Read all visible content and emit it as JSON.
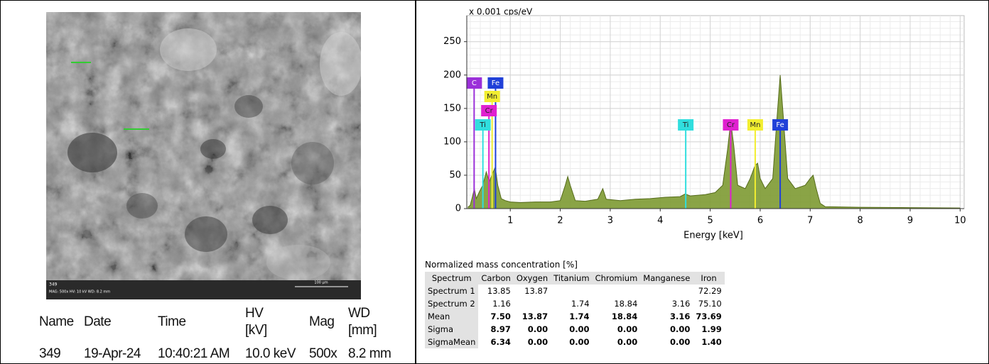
{
  "sem_image": {
    "id_label": "349",
    "info": "MAG: 500x   HV: 10 kV   WD: 8.2 mm",
    "scale_bar": "100 µm"
  },
  "acquisition_table": {
    "headers": [
      "Name",
      "Date",
      "Time",
      "HV [kV]",
      "Mag",
      "WD [mm]"
    ],
    "rows": [
      [
        "349",
        "19-Apr-24",
        "10:40:21 AM",
        "10.0 keV",
        "500x",
        "8.2 mm"
      ]
    ]
  },
  "chart_data": {
    "type": "area",
    "ylabel": "x 0.001 cps/eV",
    "xlabel": "Energy [keV]",
    "xlim": [
      0.13,
      10.08
    ],
    "ylim": [
      0,
      289
    ],
    "xticks": [
      1,
      2,
      3,
      4,
      5,
      6,
      7,
      8,
      9,
      10
    ],
    "yticks": [
      0,
      50,
      100,
      150,
      200,
      250
    ],
    "grid": true,
    "x": [
      0.15,
      0.2,
      0.25,
      0.28,
      0.32,
      0.38,
      0.45,
      0.52,
      0.58,
      0.63,
      0.7,
      0.75,
      0.82,
      0.9,
      1.0,
      1.2,
      1.5,
      1.8,
      2.0,
      2.1,
      2.15,
      2.2,
      2.3,
      2.5,
      2.75,
      2.85,
      2.92,
      3.2,
      3.5,
      3.8,
      4.1,
      4.4,
      4.5,
      4.6,
      4.9,
      5.1,
      5.25,
      5.35,
      5.41,
      5.47,
      5.55,
      5.7,
      5.8,
      5.9,
      5.95,
      6.0,
      6.1,
      6.25,
      6.33,
      6.4,
      6.46,
      6.55,
      6.7,
      6.9,
      7.0,
      7.06,
      7.12,
      7.2,
      7.3,
      8.0,
      9.0,
      10.0
    ],
    "series": [
      {
        "color": "#7d9a32",
        "values": [
          2,
          5,
          20,
          30,
          15,
          25,
          35,
          55,
          40,
          50,
          62,
          35,
          15,
          12,
          10,
          9,
          10,
          10,
          12,
          35,
          48,
          35,
          12,
          11,
          14,
          30,
          14,
          12,
          14,
          15,
          17,
          18,
          22,
          19,
          21,
          24,
          35,
          90,
          130,
          95,
          35,
          30,
          45,
          65,
          68,
          45,
          30,
          45,
          130,
          200,
          140,
          45,
          30,
          35,
          45,
          50,
          30,
          8,
          3,
          2,
          1.5,
          1
        ]
      }
    ],
    "element_markers": [
      {
        "label": "C",
        "energy": 0.277,
        "color": "#9b30d9"
      },
      {
        "label": "Fe",
        "energy": 0.705,
        "color": "#2040d8"
      },
      {
        "label": "Mn",
        "energy": 0.637,
        "color": "#f2ee30"
      },
      {
        "label": "Cr",
        "energy": 0.573,
        "color": "#e020d0"
      },
      {
        "label": "Ti",
        "energy": 0.452,
        "color": "#30dede"
      },
      {
        "label": "Ti",
        "energy": 4.51,
        "color": "#30dede"
      },
      {
        "label": "Cr",
        "energy": 5.41,
        "color": "#e020d0"
      },
      {
        "label": "Mn",
        "energy": 5.9,
        "color": "#f2ee30"
      },
      {
        "label": "Fe",
        "energy": 6.4,
        "color": "#2040d8"
      }
    ]
  },
  "concentration_table": {
    "title": "Normalized mass concentration [%]",
    "headers": [
      "Spectrum",
      "Carbon",
      "Oxygen",
      "Titanium",
      "Chromium",
      "Manganese",
      "Iron"
    ],
    "rows": [
      [
        "Spectrum 1",
        "13.85",
        "13.87",
        null,
        null,
        null,
        "72.29"
      ],
      [
        "Spectrum 2",
        "1.16",
        null,
        "1.74",
        "18.84",
        "3.16",
        "75.10"
      ],
      [
        "Mean",
        "7.50",
        "13.87",
        "1.74",
        "18.84",
        "3.16",
        "73.69"
      ],
      [
        "Sigma",
        "8.97",
        "0.00",
        "0.00",
        "0.00",
        "0.00",
        "1.99"
      ],
      [
        "SigmaMean",
        "6.34",
        "0.00",
        "0.00",
        "0.00",
        "0.00",
        "1.40"
      ]
    ]
  }
}
